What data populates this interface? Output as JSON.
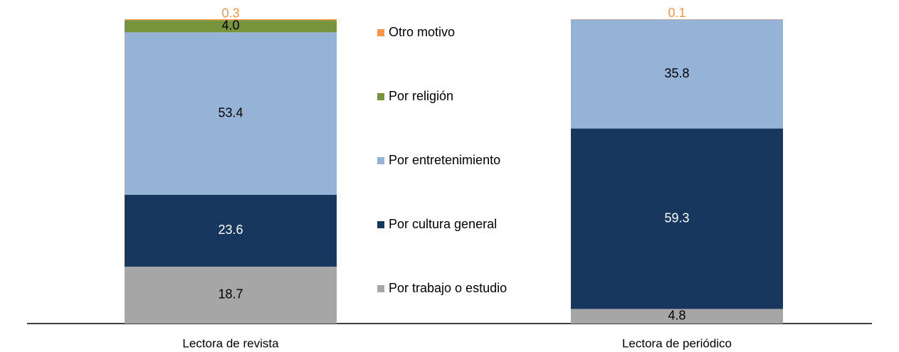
{
  "chart_data": {
    "type": "stacked_bar",
    "categories": [
      "Lectora de revista",
      "Lectora de periódico"
    ],
    "series": [
      {
        "name": "Por trabajo o estudio",
        "color": "#a6a6a6",
        "label_color": "#000000",
        "values": [
          18.7,
          4.8
        ]
      },
      {
        "name": "Por cultura general",
        "color": "#17375e",
        "label_color": "#ffffff",
        "values": [
          23.6,
          59.3
        ]
      },
      {
        "name": "Por entretenimiento",
        "color": "#95b3d7",
        "label_color": "#000000",
        "values": [
          53.4,
          35.8
        ]
      },
      {
        "name": "Por religión",
        "color": "#77933c",
        "label_color": "#000000",
        "values": [
          4.0,
          0.0
        ]
      },
      {
        "name": "Otro motivo",
        "color": "#f79646",
        "label_color": "#f79646",
        "values": [
          0.3,
          0.1
        ]
      }
    ],
    "value_labels": [
      [
        "18.7",
        "4.8"
      ],
      [
        "23.6",
        "59.3"
      ],
      [
        "53.4",
        "35.8"
      ],
      [
        "4.0",
        null
      ],
      [
        "0.3",
        "0.1"
      ]
    ],
    "ylim": [
      0,
      100
    ]
  }
}
